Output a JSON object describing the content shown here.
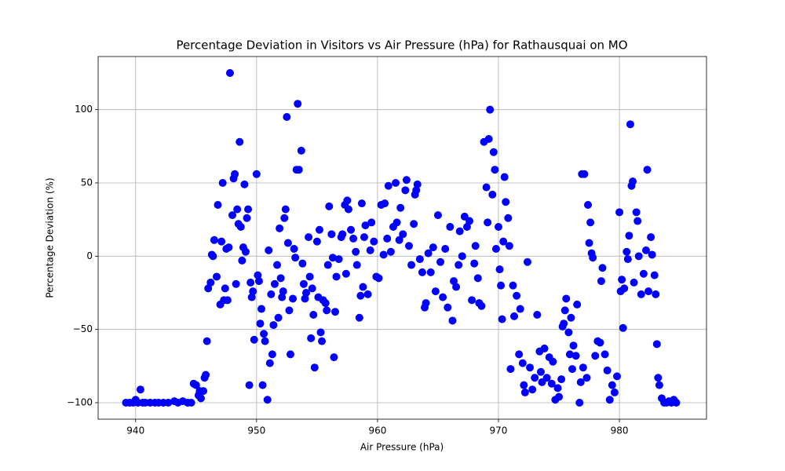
{
  "chart_data": {
    "type": "scatter",
    "title": "Percentage Deviation in Visitors vs Air Pressure (hPa) for Rathausquai on MO",
    "x_label": "Air Pressure (hPa)",
    "y_label": "Percentage Deviation (%)",
    "color": "#0000ff",
    "grid": true,
    "xlim": [
      936.9,
      987.2
    ],
    "ylim": [
      -111.25,
      136.25
    ],
    "xticks": [
      940,
      950,
      960,
      970,
      980
    ],
    "yticks": [
      {
        "value": -100,
        "label": "−100"
      },
      {
        "value": -50,
        "label": "−50"
      },
      0,
      50,
      100
    ],
    "x": [
      939.2,
      939.5,
      939.8,
      940.0,
      940.2,
      940.4,
      940.6,
      940.8,
      941.2,
      941.6,
      941.9,
      942.3,
      942.7,
      943.2,
      943.5,
      943.9,
      944.3,
      944.6,
      944.8,
      945.0,
      945.2,
      945.3,
      945.4,
      945.6,
      945.7,
      945.8,
      945.9,
      946.0,
      946.2,
      946.3,
      946.4,
      946.5,
      946.7,
      946.8,
      947.0,
      947.1,
      947.2,
      947.3,
      947.4,
      947.5,
      947.6,
      947.7,
      947.8,
      948.0,
      948.1,
      948.2,
      948.3,
      948.4,
      948.5,
      948.6,
      948.7,
      948.8,
      948.9,
      949.0,
      949.1,
      949.2,
      949.3,
      949.4,
      949.5,
      949.6,
      949.7,
      949.8,
      950.0,
      950.1,
      950.2,
      950.3,
      950.4,
      950.5,
      950.6,
      950.7,
      950.9,
      951.0,
      951.1,
      951.2,
      951.3,
      951.4,
      951.5,
      951.7,
      951.8,
      951.9,
      952.0,
      952.1,
      952.2,
      952.3,
      952.4,
      952.5,
      952.6,
      952.7,
      952.8,
      953.0,
      953.1,
      953.2,
      953.3,
      953.4,
      953.5,
      953.7,
      953.8,
      953.9,
      954.0,
      954.1,
      954.3,
      954.4,
      954.5,
      954.6,
      954.7,
      954.8,
      955.0,
      955.1,
      955.2,
      955.3,
      955.4,
      955.5,
      955.7,
      955.8,
      955.9,
      956.0,
      956.2,
      956.3,
      956.4,
      956.5,
      956.6,
      956.8,
      957.0,
      957.1,
      957.3,
      957.4,
      957.5,
      957.6,
      957.8,
      958.0,
      958.2,
      958.3,
      958.5,
      958.6,
      958.7,
      958.8,
      958.9,
      959.0,
      959.2,
      959.4,
      959.5,
      959.7,
      959.9,
      960.1,
      960.3,
      960.5,
      960.6,
      960.8,
      960.9,
      961.1,
      961.3,
      961.5,
      961.6,
      961.8,
      961.9,
      962.1,
      962.3,
      962.4,
      962.6,
      962.8,
      963.0,
      963.1,
      963.2,
      963.3,
      963.5,
      963.7,
      963.9,
      964.0,
      964.2,
      964.4,
      964.6,
      964.8,
      965.0,
      965.2,
      965.4,
      965.6,
      965.8,
      966.0,
      966.2,
      966.3,
      966.5,
      966.7,
      966.8,
      967.0,
      967.2,
      967.4,
      967.6,
      967.8,
      968.0,
      968.1,
      968.3,
      968.4,
      968.6,
      968.8,
      969.0,
      969.1,
      969.2,
      969.3,
      969.5,
      969.6,
      969.7,
      969.8,
      970.0,
      970.1,
      970.2,
      970.3,
      970.4,
      970.5,
      970.6,
      970.8,
      970.9,
      971.0,
      971.2,
      971.3,
      971.5,
      971.7,
      971.8,
      972.0,
      972.1,
      972.2,
      972.4,
      972.6,
      972.8,
      973.0,
      973.2,
      973.4,
      973.5,
      973.6,
      973.8,
      974.0,
      974.2,
      974.4,
      974.5,
      974.7,
      974.9,
      975.0,
      975.2,
      975.3,
      975.4,
      975.5,
      975.6,
      975.8,
      975.9,
      976.0,
      976.1,
      976.2,
      976.4,
      976.5,
      976.7,
      976.8,
      976.9,
      977.0,
      977.1,
      977.3,
      977.4,
      977.5,
      977.6,
      977.7,
      977.8,
      978.0,
      978.2,
      978.4,
      978.5,
      978.6,
      978.8,
      979.0,
      979.2,
      979.4,
      979.6,
      979.8,
      980.0,
      980.1,
      980.2,
      980.3,
      980.4,
      980.6,
      980.7,
      980.8,
      980.9,
      981.0,
      981.1,
      981.2,
      981.4,
      981.5,
      981.6,
      981.8,
      982.0,
      982.2,
      982.3,
      982.4,
      982.6,
      982.7,
      982.9,
      983.0,
      983.1,
      983.2,
      983.3,
      983.5,
      983.7,
      983.9,
      984.1,
      984.3,
      984.5,
      984.7
    ],
    "values": [
      -100,
      -100,
      -100,
      -98,
      -100,
      -91,
      -100,
      -100,
      -100,
      -100,
      -100,
      -100,
      -100,
      -99,
      -100,
      -99,
      -100,
      -100,
      -87,
      -88,
      -95,
      -92,
      -97,
      -92,
      -83,
      -81,
      -58,
      -22,
      -18,
      1,
      0,
      11,
      -14,
      35,
      -33,
      10,
      50,
      -30,
      -22,
      5,
      -30,
      6,
      125,
      28,
      53,
      56,
      -19,
      32,
      22,
      78,
      20,
      -3,
      6,
      49,
      3,
      26,
      32,
      -88,
      -18,
      -28,
      -24,
      -57,
      56,
      -13,
      -17,
      -46,
      -36,
      -88,
      -53,
      -58,
      -98,
      4,
      -73,
      -26,
      -67,
      -47,
      -19,
      -6,
      -42,
      19,
      -15,
      -28,
      -24,
      26,
      32,
      95,
      9,
      -37,
      -67,
      -29,
      5,
      -1,
      59,
      104,
      59,
      72,
      -5,
      -19,
      -29,
      -25,
      13,
      -14,
      -56,
      -22,
      -40,
      -76,
      10,
      -28,
      18,
      -52,
      -58,
      -30,
      -32,
      -37,
      -6,
      34,
      15,
      -1,
      -69,
      -38,
      -14,
      -2,
      13,
      15,
      35,
      -12,
      38,
      32,
      18,
      12,
      3,
      -6,
      -42,
      -27,
      36,
      -21,
      13,
      21,
      -26,
      4,
      23,
      10,
      -14,
      -15,
      35,
      1,
      36,
      12,
      48,
      3,
      20,
      50,
      23,
      11,
      33,
      15,
      45,
      52,
      7,
      -6,
      22,
      42,
      45,
      49,
      -2,
      -11,
      -35,
      -32,
      2,
      -11,
      6,
      -24,
      28,
      -4,
      -28,
      5,
      -35,
      20,
      -44,
      -17,
      -21,
      -6,
      17,
      0,
      27,
      20,
      24,
      -30,
      -5,
      7,
      -15,
      -32,
      -34,
      78,
      47,
      23,
      80,
      100,
      42,
      71,
      59,
      5,
      20,
      -9,
      -20,
      -43,
      10,
      54,
      37,
      26,
      7,
      -77,
      -20,
      -41,
      -27,
      -67,
      -36,
      -73,
      -88,
      -93,
      -4,
      -76,
      -91,
      -83,
      -40,
      -65,
      -79,
      -86,
      -63,
      -83,
      -69,
      -87,
      -72,
      -98,
      -90,
      -96,
      -84,
      -48,
      -46,
      -37,
      -29,
      -52,
      -67,
      -42,
      -77,
      -61,
      -68,
      -33,
      -100,
      -86,
      56,
      -76,
      56,
      -83,
      35,
      9,
      23,
      2,
      -1,
      -68,
      -58,
      -59,
      -17,
      -8,
      -67,
      -78,
      -98,
      -88,
      -93,
      -82,
      30,
      -24,
      -16,
      -49,
      -22,
      3,
      -2,
      14,
      90,
      48,
      51,
      -18,
      30,
      24,
      0,
      -26,
      -12,
      4,
      59,
      -24,
      13,
      1,
      -13,
      -26,
      -60,
      -83,
      -88,
      -97,
      -100,
      -100,
      -99,
      -100,
      -98,
      -100
    ]
  }
}
